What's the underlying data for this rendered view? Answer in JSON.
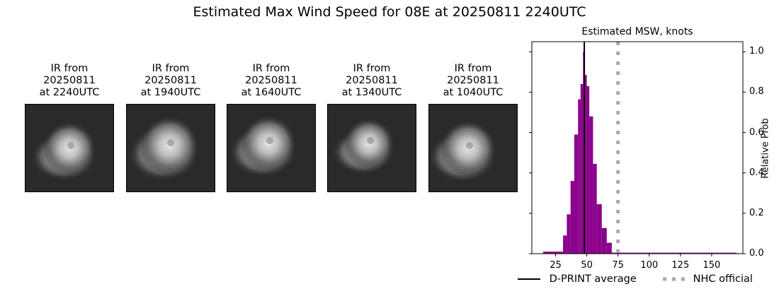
{
  "title": "Estimated Max Wind Speed for 08E at 20250811 2240UTC",
  "ir_panels": [
    {
      "line1": "IR from",
      "line2": "20250811",
      "line3": "at 2240UTC"
    },
    {
      "line1": "IR from",
      "line2": "20250811",
      "line3": "at 1940UTC"
    },
    {
      "line1": "IR from",
      "line2": "20250811",
      "line3": "at 1640UTC"
    },
    {
      "line1": "IR from",
      "line2": "20250811",
      "line3": "at 1340UTC"
    },
    {
      "line1": "IR from",
      "line2": "20250811",
      "line3": "at 1040UTC"
    }
  ],
  "legend": {
    "dprint_label": "D-PRINT average",
    "nhc_label": "NHC official"
  },
  "colors": {
    "bars": "#8b008b",
    "dprint_line": "#000000",
    "nhc_line": "#aaaaaa"
  },
  "chart_data": {
    "type": "bar",
    "title": "Estimated MSW, knots",
    "xlabel": "",
    "ylabel": "Relative Prob",
    "y_axis_position": "right",
    "xlim": [
      6,
      175
    ],
    "ylim": [
      0,
      1.05
    ],
    "x_ticks": [
      25,
      50,
      75,
      100,
      125,
      150
    ],
    "y_ticks": [
      "0.0",
      "0.2",
      "0.4",
      "0.6",
      "0.8",
      "1.0"
    ],
    "grid": false,
    "bins": [
      {
        "x0": 15,
        "x1": 31,
        "value": 0.01
      },
      {
        "x0": 31,
        "x1": 34,
        "value": 0.09
      },
      {
        "x0": 34,
        "x1": 37,
        "value": 0.195
      },
      {
        "x0": 37,
        "x1": 40,
        "value": 0.36
      },
      {
        "x0": 40,
        "x1": 43,
        "value": 0.59
      },
      {
        "x0": 43,
        "x1": 45,
        "value": 0.765
      },
      {
        "x0": 45,
        "x1": 47,
        "value": 0.84
      },
      {
        "x0": 47,
        "x1": 48,
        "value": 1.0
      },
      {
        "x0": 48,
        "x1": 50,
        "value": 0.885
      },
      {
        "x0": 50,
        "x1": 52,
        "value": 0.83
      },
      {
        "x0": 52,
        "x1": 55,
        "value": 0.68
      },
      {
        "x0": 55,
        "x1": 58,
        "value": 0.445
      },
      {
        "x0": 58,
        "x1": 62,
        "value": 0.245
      },
      {
        "x0": 62,
        "x1": 66,
        "value": 0.127
      },
      {
        "x0": 66,
        "x1": 70,
        "value": 0.054
      },
      {
        "x0": 70,
        "x1": 170,
        "value": 0.005
      }
    ],
    "vlines": [
      {
        "name": "D-PRINT average",
        "x": 48,
        "style": "solid",
        "color": "#000000"
      },
      {
        "name": "NHC official",
        "x": 75,
        "style": "dotted",
        "color": "#aaaaaa"
      }
    ],
    "legend_position": "bottom"
  }
}
